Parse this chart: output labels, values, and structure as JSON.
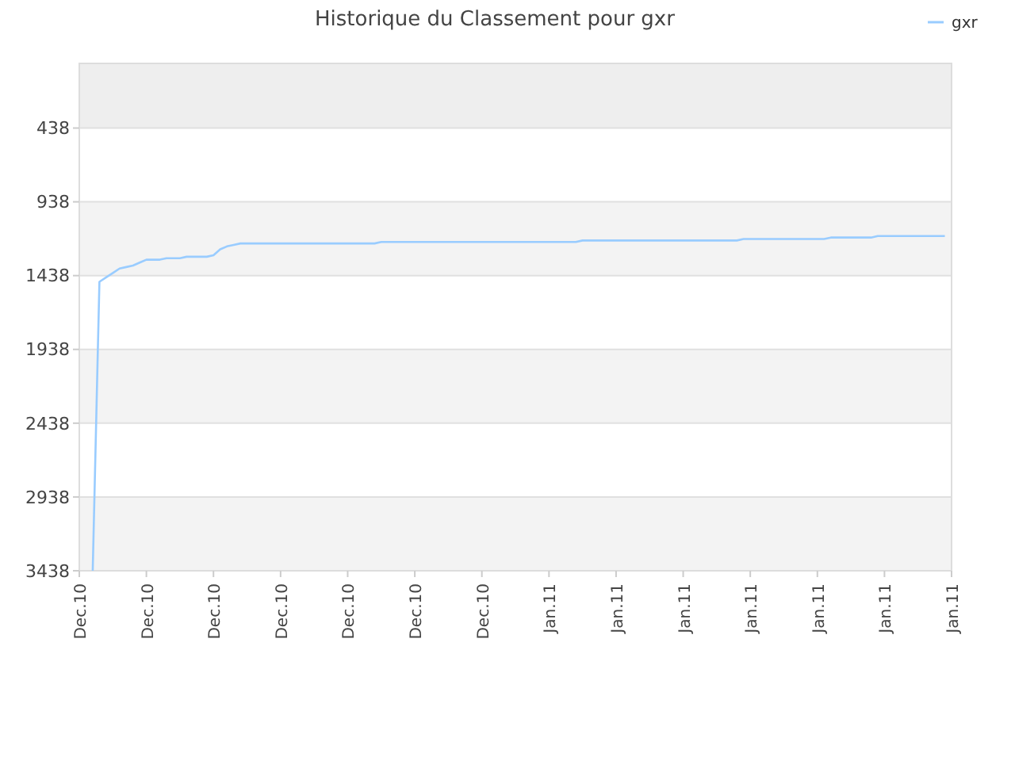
{
  "chart_data": {
    "type": "line",
    "title": "Historique du Classement pour gxr",
    "categories": [
      "Dec.10",
      null,
      null,
      null,
      null,
      null,
      null,
      null,
      null,
      null,
      "Dec.10",
      null,
      null,
      null,
      null,
      null,
      null,
      null,
      null,
      null,
      "Dec.10",
      null,
      null,
      null,
      null,
      null,
      null,
      null,
      null,
      null,
      "Dec.10",
      null,
      null,
      null,
      null,
      null,
      null,
      null,
      null,
      null,
      "Dec.10",
      null,
      null,
      null,
      null,
      null,
      null,
      null,
      null,
      null,
      "Dec.10",
      null,
      null,
      null,
      null,
      null,
      null,
      null,
      null,
      null,
      "Dec.10",
      null,
      null,
      null,
      null,
      null,
      null,
      null,
      null,
      null,
      "Jan.11",
      null,
      null,
      null,
      null,
      null,
      null,
      null,
      null,
      null,
      "Jan.11",
      null,
      null,
      null,
      null,
      null,
      null,
      null,
      null,
      null,
      "Jan.11",
      null,
      null,
      null,
      null,
      null,
      null,
      null,
      null,
      null,
      "Jan.11",
      null,
      null,
      null,
      null,
      null,
      null,
      null,
      null,
      null,
      "Jan.11",
      null,
      null,
      null,
      null,
      null,
      null,
      null,
      null,
      null,
      "Jan.11",
      null,
      null,
      null,
      null,
      null,
      null,
      null,
      null,
      null,
      "Jan.11"
    ],
    "ylim": [
      3438,
      0
    ],
    "yticks": [
      438,
      938,
      1438,
      1938,
      2438,
      2938,
      3438
    ],
    "grid": "y",
    "legend": "top right",
    "marker": "none",
    "line_style": "solid",
    "series": [
      {
        "name": "gxr",
        "color": "#99ccff",
        "values": [
          null,
          null,
          3438,
          1480,
          1450,
          1420,
          1390,
          1380,
          1370,
          1350,
          1330,
          1330,
          1330,
          1320,
          1320,
          1320,
          1310,
          1310,
          1310,
          1310,
          1300,
          1260,
          1240,
          1230,
          1220,
          1220,
          1220,
          1220,
          1220,
          1220,
          1220,
          1220,
          1220,
          1220,
          1220,
          1220,
          1220,
          1220,
          1220,
          1220,
          1220,
          1220,
          1220,
          1220,
          1220,
          1210,
          1210,
          1210,
          1210,
          1210,
          1210,
          1210,
          1210,
          1210,
          1210,
          1210,
          1210,
          1210,
          1210,
          1210,
          1210,
          1210,
          1210,
          1210,
          1210,
          1210,
          1210,
          1210,
          1210,
          1210,
          1210,
          1210,
          1210,
          1210,
          1210,
          1200,
          1200,
          1200,
          1200,
          1200,
          1200,
          1200,
          1200,
          1200,
          1200,
          1200,
          1200,
          1200,
          1200,
          1200,
          1200,
          1200,
          1200,
          1200,
          1200,
          1200,
          1200,
          1200,
          1200,
          1190,
          1190,
          1190,
          1190,
          1190,
          1190,
          1190,
          1190,
          1190,
          1190,
          1190,
          1190,
          1190,
          1180,
          1180,
          1180,
          1180,
          1180,
          1180,
          1180,
          1170,
          1170,
          1170,
          1170,
          1170,
          1170,
          1170,
          1170,
          1170,
          1170,
          1170,
          null
        ]
      }
    ]
  }
}
